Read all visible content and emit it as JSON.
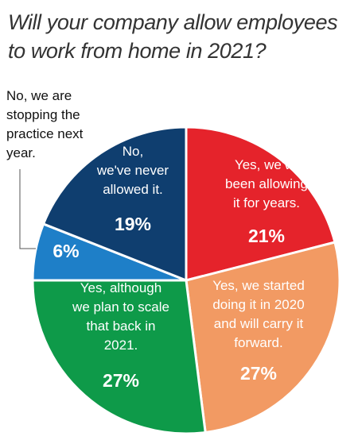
{
  "chart_data": {
    "type": "pie",
    "title_lines": [
      "Will your company allow employees",
      "to work from home in 2021?"
    ],
    "slices": [
      {
        "label_lines": [
          "Yes, we've",
          "been allowing",
          "it for years."
        ],
        "value": 21,
        "value_label": "21%",
        "color": "#e5232b"
      },
      {
        "label_lines": [
          "Yes, we started",
          "doing it in 2020",
          "and will carry it",
          "forward."
        ],
        "value": 27,
        "value_label": "27%",
        "color": "#f29a63"
      },
      {
        "label_lines": [
          "Yes, although",
          "we plan to scale",
          "that back in",
          "2021."
        ],
        "value": 27,
        "value_label": "27%",
        "color": "#0e9a49"
      },
      {
        "label_lines": [
          "No, we are",
          "stopping the",
          "practice next",
          "year."
        ],
        "value": 6,
        "value_label": "6%",
        "color": "#1e7fc8"
      },
      {
        "label_lines": [
          "No,",
          "we've never",
          "allowed it."
        ],
        "value": 19,
        "value_label": "19%",
        "color": "#0f3e6f"
      }
    ]
  }
}
